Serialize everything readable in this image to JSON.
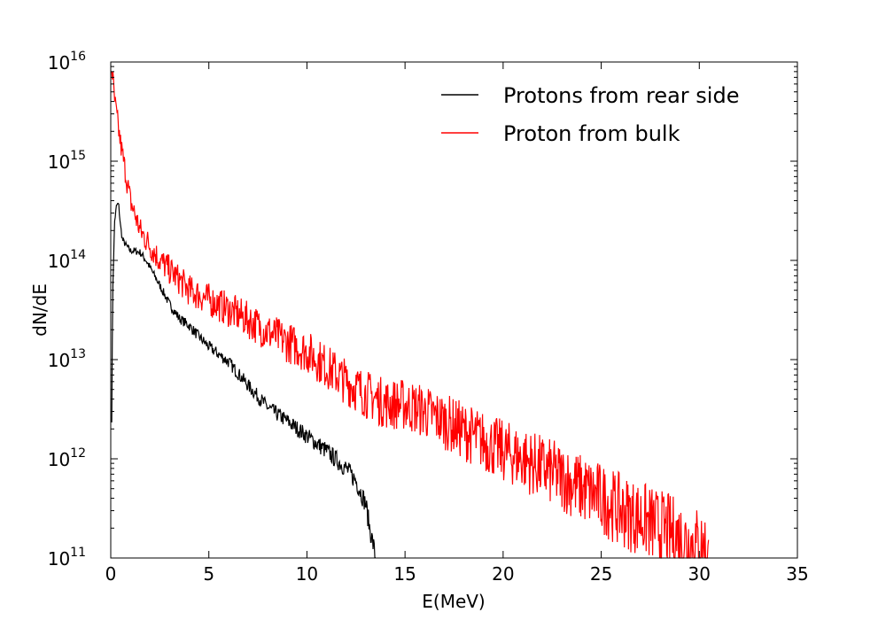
{
  "chart_data": {
    "type": "line",
    "title": "",
    "xlabel": "E(MeV)",
    "ylabel": "dN/dE",
    "xlim": [
      0,
      35
    ],
    "ylim": [
      100000000000.0,
      1e+16
    ],
    "yscale": "log",
    "x_ticks": [
      0,
      5,
      10,
      15,
      20,
      25,
      30,
      35
    ],
    "y_ticks": [
      {
        "base": "10",
        "exp": "11",
        "value": 100000000000.0
      },
      {
        "base": "10",
        "exp": "12",
        "value": 1000000000000.0
      },
      {
        "base": "10",
        "exp": "13",
        "value": 10000000000000.0
      },
      {
        "base": "10",
        "exp": "14",
        "value": 100000000000000.0
      },
      {
        "base": "10",
        "exp": "15",
        "value": 1000000000000000.0
      },
      {
        "base": "10",
        "exp": "16",
        "value": 1e+16
      }
    ],
    "grid": false,
    "legend_position": "top-right",
    "series": [
      {
        "name": "Protons from rear side",
        "color": "#000000",
        "noise": 0.03,
        "x": [
          0.05,
          0.1,
          0.2,
          0.3,
          0.4,
          0.5,
          0.6,
          0.8,
          1.0,
          1.2,
          1.5,
          1.8,
          2.0,
          2.5,
          3.0,
          3.5,
          4.0,
          4.5,
          5.0,
          6.0,
          7.0,
          8.0,
          9.0,
          10.0,
          11.0,
          12.0,
          12.5,
          13.0,
          13.2,
          13.4,
          13.5
        ],
        "y": [
          2500000000000.0,
          50000000000000.0,
          250000000000000.0,
          360000000000000.0,
          370000000000000.0,
          220000000000000.0,
          160000000000000.0,
          140000000000000.0,
          125000000000000.0,
          125000000000000.0,
          120000000000000.0,
          100000000000000.0,
          85000000000000.0,
          56000000000000.0,
          36000000000000.0,
          26000000000000.0,
          22000000000000.0,
          17000000000000.0,
          13500000000000.0,
          9500000000000.0,
          5500000000000.0,
          3300000000000.0,
          2400000000000.0,
          1700000000000.0,
          1200000000000.0,
          800000000000.0,
          600000000000.0,
          350000000000.0,
          200000000000.0,
          130000000000.0,
          100000000000.0
        ]
      },
      {
        "name": "Proton from bulk",
        "color": "#ff0000",
        "noise": 0.12,
        "x": [
          0.05,
          0.2,
          0.5,
          1.0,
          1.5,
          2.0,
          2.5,
          3.0,
          4.0,
          5.0,
          6.0,
          7.0,
          8.0,
          9.0,
          10.0,
          11.0,
          12.0,
          13.0,
          14.0,
          15.0,
          16.0,
          17.0,
          18.0,
          19.0,
          20.0,
          21.0,
          22.0,
          23.0,
          24.0,
          25.0,
          26.0,
          27.0,
          28.0,
          29.0,
          30.0,
          30.5
        ],
        "y": [
          9000000000000000.0,
          4000000000000000.0,
          1500000000000000.0,
          400000000000000.0,
          200000000000000.0,
          140000000000000.0,
          100000000000000.0,
          80000000000000.0,
          50000000000000.0,
          40000000000000.0,
          32000000000000.0,
          25000000000000.0,
          19000000000000.0,
          15000000000000.0,
          12000000000000.0,
          8500000000000.0,
          6000000000000.0,
          4500000000000.0,
          3600000000000.0,
          3500000000000.0,
          3000000000000.0,
          2400000000000.0,
          1900000000000.0,
          1500000000000.0,
          1200000000000.0,
          1000000000000.0,
          800000000000.0,
          650000000000.0,
          500000000000.0,
          400000000000.0,
          300000000000.0,
          250000000000.0,
          200000000000.0,
          160000000000.0,
          130000000000.0,
          110000000000.0
        ]
      }
    ]
  }
}
